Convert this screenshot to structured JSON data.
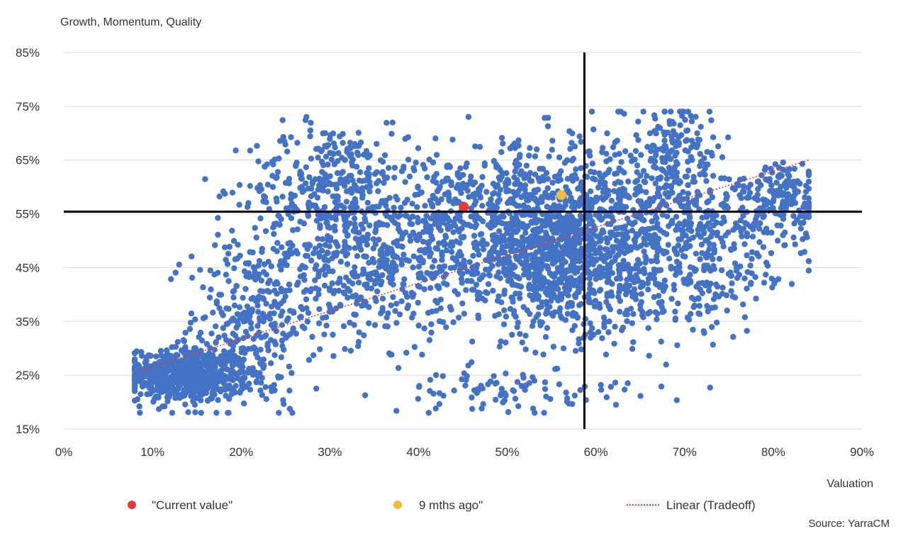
{
  "chart_data": {
    "type": "scatter",
    "title": "",
    "ylabel": "Growth, Momentum, Quality",
    "xlabel": "Valuation",
    "source": "Source: YarraCM",
    "xlim": [
      0,
      0.9
    ],
    "ylim": [
      0.15,
      0.85
    ],
    "xticks": [
      0,
      0.1,
      0.2,
      0.3,
      0.4,
      0.5,
      0.6,
      0.7,
      0.8,
      0.9
    ],
    "yticks": [
      0.15,
      0.25,
      0.35,
      0.45,
      0.55,
      0.65,
      0.75,
      0.85
    ],
    "xtick_labels": [
      "0%",
      "10%",
      "20%",
      "30%",
      "40%",
      "50%",
      "60%",
      "70%",
      "80%",
      "90%"
    ],
    "ytick_labels": [
      "15%",
      "25%",
      "35%",
      "45%",
      "55%",
      "65%",
      "75%",
      "85%"
    ],
    "grid": "horizontal",
    "legend_position": "bottom",
    "crosshair": {
      "x": 0.587,
      "y": 0.554,
      "color": "#000000"
    },
    "series": [
      {
        "name": "",
        "role": "universe",
        "color": "#4472c4",
        "clusters": [
          {
            "cx": 0.14,
            "cy": 0.25,
            "sx": 0.035,
            "sy": 0.025,
            "n": 650
          },
          {
            "cx": 0.21,
            "cy": 0.35,
            "sx": 0.035,
            "sy": 0.08,
            "n": 280
          },
          {
            "cx": 0.3,
            "cy": 0.6,
            "sx": 0.045,
            "sy": 0.06,
            "n": 320
          },
          {
            "cx": 0.33,
            "cy": 0.45,
            "sx": 0.06,
            "sy": 0.07,
            "n": 320
          },
          {
            "cx": 0.45,
            "cy": 0.5,
            "sx": 0.07,
            "sy": 0.08,
            "n": 550
          },
          {
            "cx": 0.56,
            "cy": 0.47,
            "sx": 0.045,
            "sy": 0.07,
            "n": 650
          },
          {
            "cx": 0.52,
            "cy": 0.58,
            "sx": 0.07,
            "sy": 0.05,
            "n": 280
          },
          {
            "cx": 0.64,
            "cy": 0.52,
            "sx": 0.05,
            "sy": 0.09,
            "n": 420
          },
          {
            "cx": 0.74,
            "cy": 0.53,
            "sx": 0.05,
            "sy": 0.06,
            "n": 220
          },
          {
            "cx": 0.81,
            "cy": 0.58,
            "sx": 0.025,
            "sy": 0.03,
            "n": 140
          },
          {
            "cx": 0.69,
            "cy": 0.67,
            "sx": 0.02,
            "sy": 0.04,
            "n": 110
          },
          {
            "cx": 0.5,
            "cy": 0.22,
            "sx": 0.07,
            "sy": 0.02,
            "n": 90
          },
          {
            "cx": 0.7,
            "cy": 0.42,
            "sx": 0.06,
            "sy": 0.05,
            "n": 160
          }
        ]
      },
      {
        "name": "\"Current value\"",
        "color": "#e53935",
        "points": [
          [
            0.451,
            0.563
          ]
        ]
      },
      {
        "name": "9 mths ago\"",
        "color": "#f5bd3c",
        "points": [
          [
            0.561,
            0.585
          ]
        ]
      },
      {
        "name": "Linear (Tradeoff)",
        "color": "#e53935",
        "style": "dotted",
        "line": [
          [
            0.08,
            0.255
          ],
          [
            0.84,
            0.65
          ]
        ]
      }
    ]
  }
}
